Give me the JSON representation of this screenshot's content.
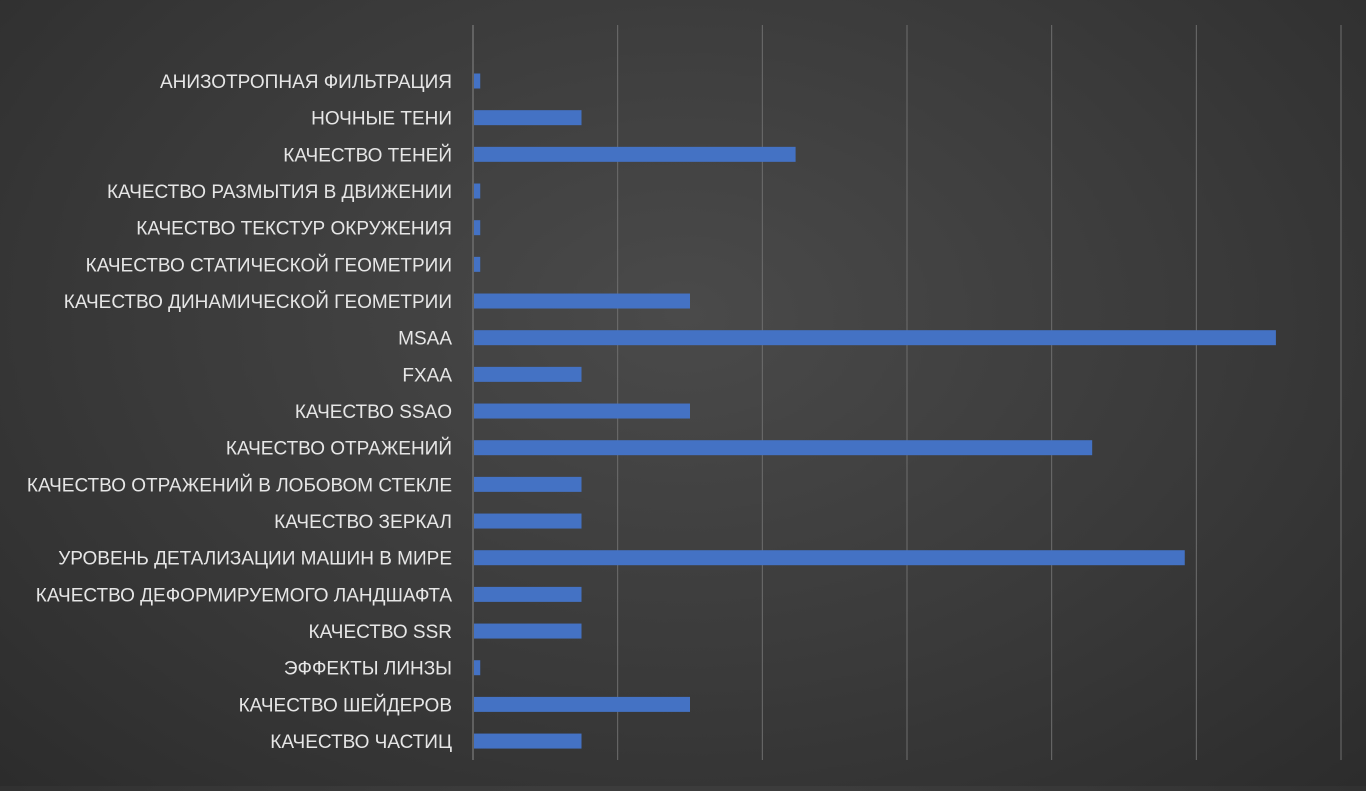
{
  "chart_data": {
    "type": "bar",
    "orientation": "horizontal",
    "title": "",
    "xlabel": "",
    "ylabel": "",
    "xlim": [
      0,
      6
    ],
    "grid": true,
    "legend": "none",
    "bar_color": "#4472C4",
    "gridline_color": "#6e6e6e",
    "label_color": "#e6e6e6",
    "categories": [
      "АНИЗОТРОПНАЯ ФИЛЬТРАЦИЯ",
      "НОЧНЫЕ ТЕНИ",
      "КАЧЕСТВО ТЕНЕЙ",
      "КАЧЕСТВО РАЗМЫТИЯ В ДВИЖЕНИИ",
      "КАЧЕСТВО ТЕКСТУР ОКРУЖЕНИЯ",
      "КАЧЕСТВО СТАТИЧЕСКОЙ ГЕОМЕТРИИ",
      "КАЧЕСТВО ДИНАМИЧЕСКОЙ ГЕОМЕТРИИ",
      "MSAA",
      "FXAA",
      "КАЧЕСТВО SSAO",
      "КАЧЕСТВО ОТРАЖЕНИЙ",
      "КАЧЕСТВО ОТРАЖЕНИЙ В ЛОБОВОМ СТЕКЛЕ",
      "КАЧЕСТВО ЗЕРКАЛ",
      "УРОВЕНЬ ДЕТАЛИЗАЦИИ МАШИН В МИРЕ",
      "КАЧЕСТВО ДЕФОРМИРУЕМОГО ЛАНДШАФТА",
      "КАЧЕСТВО SSR",
      "ЭФФЕКТЫ ЛИНЗЫ",
      "КАЧЕСТВО ШЕЙДЕРОВ",
      "КАЧЕСТВО ЧАСТИЦ"
    ],
    "values": [
      0.05,
      0.75,
      2.23,
      0.05,
      0.05,
      0.05,
      1.5,
      5.55,
      0.75,
      1.5,
      4.28,
      0.75,
      0.75,
      4.92,
      0.75,
      0.75,
      0.05,
      1.5,
      0.75
    ]
  }
}
